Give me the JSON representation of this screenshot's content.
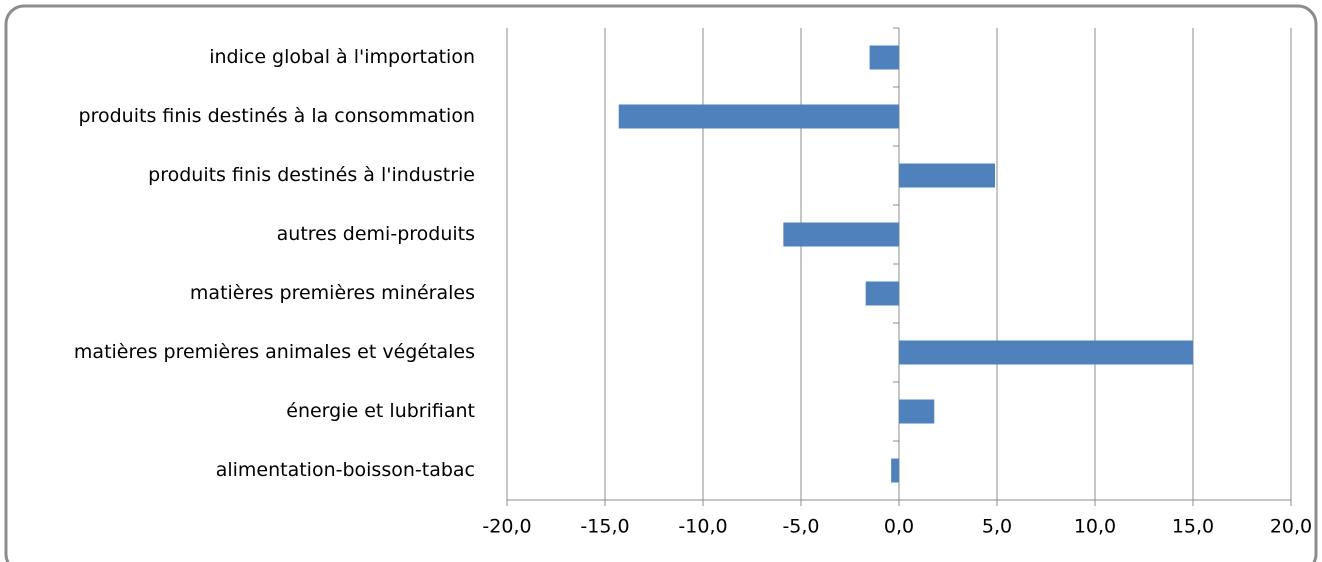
{
  "chart_data": {
    "type": "barh",
    "categories": [
      "indice global à l'importation",
      "produits finis destinés à la consommation",
      "produits finis destinés à l'industrie",
      "autres demi-produits",
      "matières premières minérales",
      "matières premières animales et végétales",
      "énergie et lubrifiant",
      "alimentation-boisson-tabac"
    ],
    "values": [
      -1.5,
      -14.3,
      4.9,
      -5.9,
      -1.7,
      15.0,
      1.8,
      -0.4
    ],
    "color": "#4f81bd",
    "xlim": [
      -20,
      20
    ],
    "xticks": [
      {
        "value": -20,
        "label": "-20,0"
      },
      {
        "value": -15,
        "label": "-15,0"
      },
      {
        "value": -10,
        "label": "-10,0"
      },
      {
        "value": -5,
        "label": "-5,0"
      },
      {
        "value": 0,
        "label": "0,0"
      },
      {
        "value": 5,
        "label": "5,0"
      },
      {
        "value": 10,
        "label": "10,0"
      },
      {
        "value": 15,
        "label": "15,0"
      },
      {
        "value": 20,
        "label": "20,0"
      }
    ],
    "grid": true
  }
}
